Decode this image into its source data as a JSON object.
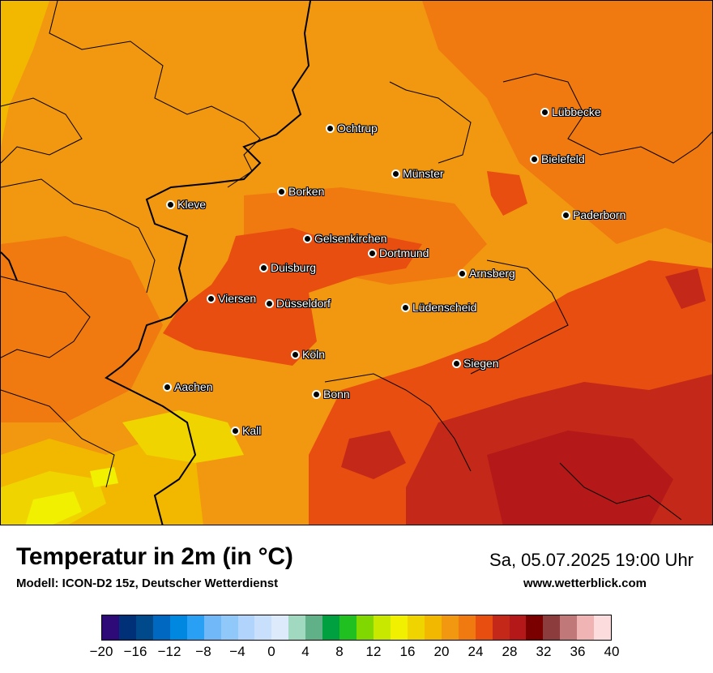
{
  "title": "Temperatur in 2m (in °C)",
  "subtitle": "Modell: ICON-D2 15z, Deutscher Wetterdienst",
  "valid_time": "Sa, 05.07.2025 19:00 Uhr",
  "website": "www.wetterblick.com",
  "cities": [
    {
      "name": "Lübbecke"
    },
    {
      "name": "Ochtrup"
    },
    {
      "name": "Bielefeld"
    },
    {
      "name": "Münster"
    },
    {
      "name": "Borken"
    },
    {
      "name": "Kleve"
    },
    {
      "name": "Paderborn"
    },
    {
      "name": "Gelsenkirchen"
    },
    {
      "name": "Dortmund"
    },
    {
      "name": "Duisburg"
    },
    {
      "name": "Arnsberg"
    },
    {
      "name": "Viersen"
    },
    {
      "name": "Düsseldorf"
    },
    {
      "name": "Lüdenscheid"
    },
    {
      "name": "Köln"
    },
    {
      "name": "Siegen"
    },
    {
      "name": "Aachen"
    },
    {
      "name": "Bonn"
    },
    {
      "name": "Kall"
    }
  ],
  "legend": {
    "min": -20,
    "max": 40,
    "step": 2,
    "tick_labels": [
      "−20",
      "−16",
      "−12",
      "−8",
      "−4",
      "0",
      "4",
      "8",
      "12",
      "16",
      "20",
      "24",
      "28",
      "32",
      "36",
      "40"
    ],
    "colors": [
      "#2d0a78",
      "#003078",
      "#004a8c",
      "#0068c0",
      "#0088e0",
      "#2aa0f4",
      "#70b8f8",
      "#90c8fa",
      "#b0d4fc",
      "#c8e0fc",
      "#dceafc",
      "#a0d8c0",
      "#60b088",
      "#00a040",
      "#20c020",
      "#80d800",
      "#c8e800",
      "#f0f000",
      "#f0d400",
      "#f2b800",
      "#f29810",
      "#f07a10",
      "#e84e10",
      "#c42818",
      "#b41818",
      "#7a0000",
      "#8c3c3c",
      "#c07878",
      "#f0b4b4",
      "#fcdcdc"
    ]
  }
}
